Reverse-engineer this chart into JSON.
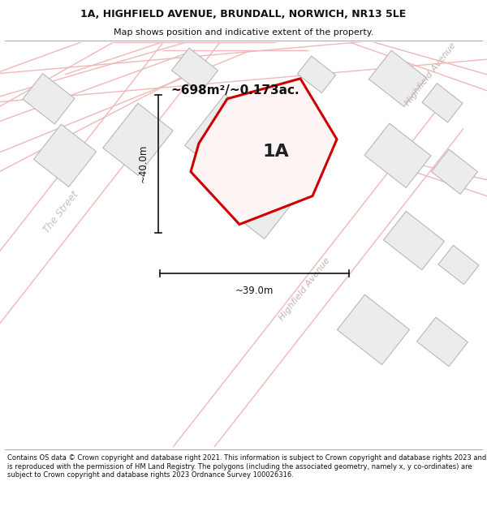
{
  "title_line1": "1A, HIGHFIELD AVENUE, BRUNDALL, NORWICH, NR13 5LE",
  "title_line2": "Map shows position and indicative extent of the property.",
  "footer_text": "Contains OS data © Crown copyright and database right 2021. This information is subject to Crown copyright and database rights 2023 and is reproduced with the permission of HM Land Registry. The polygons (including the associated geometry, namely x, y co-ordinates) are subject to Crown copyright and database rights 2023 Ordnance Survey 100026316.",
  "area_label": "~698m²/~0.173ac.",
  "property_label": "1A",
  "dim_horizontal": "~39.0m",
  "dim_vertical": "~40.0m",
  "map_bg": "#ffffff",
  "road_color": "#f0b8b8",
  "building_face": "#ececec",
  "building_edge": "#b8b8b8",
  "highlight_color": "#cc0000",
  "street_label1": "The Street",
  "street_label2": "Highfield Avenue",
  "street_label3": "Highfield Avenue",
  "title_fontsize": 9.0,
  "subtitle_fontsize": 8.0,
  "footer_fontsize": 6.0
}
